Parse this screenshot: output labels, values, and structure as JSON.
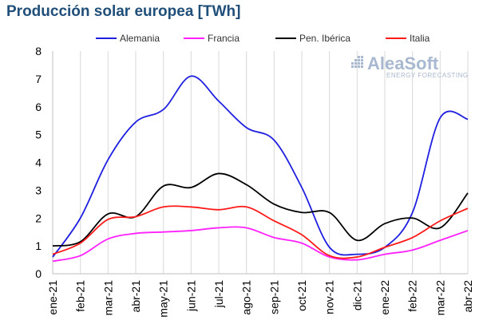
{
  "chart_data": {
    "type": "line",
    "title": "Producción solar europea [TWh]",
    "xlabel": "",
    "ylabel": "",
    "categories": [
      "ene-21",
      "feb-21",
      "mar-21",
      "abr-21",
      "may-21",
      "jun-21",
      "jul-21",
      "ago-21",
      "sep-21",
      "oct-21",
      "nov-21",
      "dic-21",
      "ene-22",
      "feb-22",
      "mar-22",
      "abr-22"
    ],
    "ylim": [
      0,
      8
    ],
    "yticks": [
      "0",
      "1",
      "2",
      "3",
      "4",
      "5",
      "6",
      "7",
      "8"
    ],
    "grid": "vertical",
    "legend_position": "top",
    "series": [
      {
        "name": "Alemania",
        "color": "#1f1fe0",
        "values": [
          0.6,
          2.0,
          4.1,
          5.45,
          5.9,
          7.1,
          6.2,
          5.25,
          4.8,
          3.1,
          0.95,
          0.7,
          0.95,
          2.2,
          5.6,
          5.55
        ]
      },
      {
        "name": "Francia",
        "color": "#ff22ff",
        "values": [
          0.45,
          0.65,
          1.25,
          1.45,
          1.5,
          1.55,
          1.65,
          1.65,
          1.3,
          1.1,
          0.6,
          0.5,
          0.7,
          0.85,
          1.2,
          1.55
        ]
      },
      {
        "name": "Pen. Ibérica",
        "color": "#000000",
        "values": [
          1.0,
          1.15,
          2.15,
          2.05,
          3.15,
          3.1,
          3.6,
          3.2,
          2.5,
          2.2,
          2.2,
          1.2,
          1.8,
          2.0,
          1.65,
          2.9
        ]
      },
      {
        "name": "Italia",
        "color": "#ff1a1a",
        "values": [
          0.7,
          1.1,
          1.95,
          2.05,
          2.4,
          2.4,
          2.3,
          2.4,
          1.9,
          1.4,
          0.65,
          0.6,
          0.95,
          1.3,
          1.9,
          2.35
        ]
      }
    ]
  },
  "logo": {
    "brand": "AleaSoft",
    "tagline": "ENERGY FORECASTING",
    "color": "#a8b8d0"
  }
}
